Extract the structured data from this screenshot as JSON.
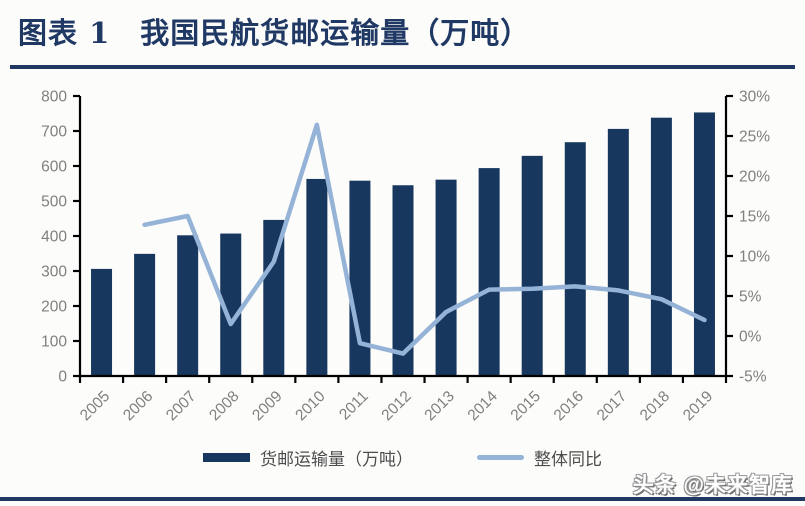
{
  "page": {
    "background": "#fcfcfb",
    "accent_color": "#1F3864"
  },
  "header": {
    "title": "图表 1　我国民航货邮运输量（万吨）"
  },
  "watermark": {
    "text": "头条 @未来智库"
  },
  "legend": {
    "items": [
      {
        "label": "货邮运输量（万吨）",
        "swatch": "bar",
        "color": "#17375E"
      },
      {
        "label": "整体同比",
        "swatch": "line",
        "color": "#95B3D7"
      }
    ]
  },
  "chart_data": {
    "type": "bar",
    "title": "我国民航货邮运输量（万吨）",
    "categories": [
      "2005",
      "2006",
      "2007",
      "2008",
      "2009",
      "2010",
      "2011",
      "2012",
      "2013",
      "2014",
      "2015",
      "2016",
      "2017",
      "2018",
      "2019"
    ],
    "series": [
      {
        "name": "货邮运输量（万吨）",
        "kind": "bar",
        "axis": "left",
        "color": "#17375E",
        "values": [
          306,
          349,
          402,
          407,
          446,
          563,
          558,
          545,
          561,
          594,
          629,
          668,
          706,
          738,
          753
        ]
      },
      {
        "name": "整体同比",
        "kind": "line",
        "axis": "right",
        "color": "#95B3D7",
        "values": [
          null,
          13.9,
          15.0,
          1.5,
          9.3,
          26.4,
          -0.9,
          -2.2,
          3.0,
          5.8,
          5.9,
          6.2,
          5.7,
          4.6,
          2.0
        ]
      }
    ],
    "left_axis": {
      "min": 0,
      "max": 800,
      "step": 100,
      "tick_labels": [
        "0",
        "100",
        "200",
        "300",
        "400",
        "500",
        "600",
        "700",
        "800"
      ]
    },
    "right_axis": {
      "min": -5,
      "max": 30,
      "step": 5,
      "tick_labels": [
        "-5%",
        "0%",
        "5%",
        "10%",
        "15%",
        "20%",
        "25%",
        "30%"
      ]
    },
    "grid": false,
    "legend_position": "bottom",
    "label_color": "#7F7F7F",
    "axis_color": "#000000"
  }
}
